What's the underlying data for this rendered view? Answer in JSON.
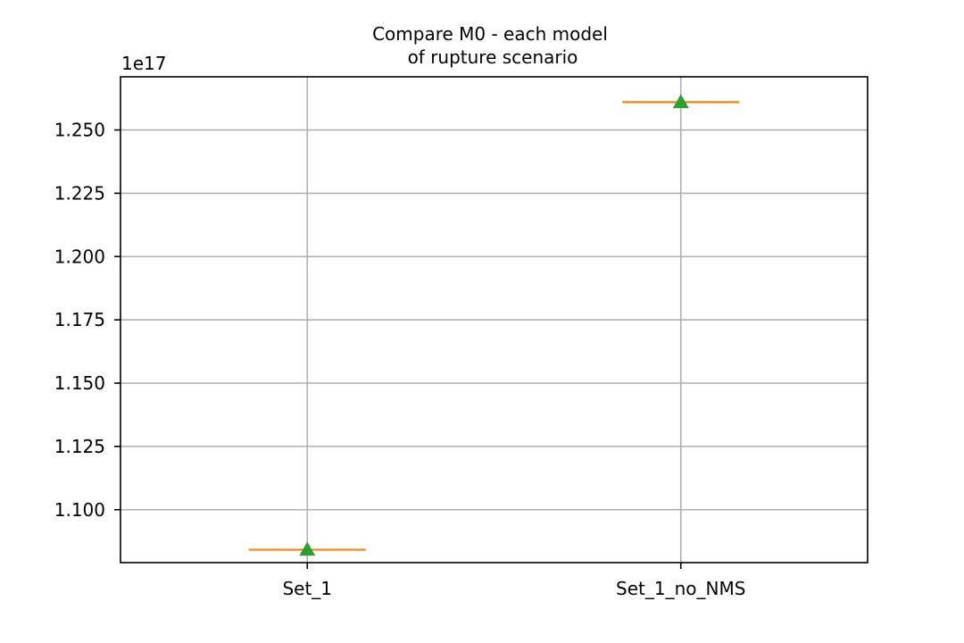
{
  "chart_data": {
    "type": "box",
    "title_lines": [
      "Compare M0 - each model",
      "of rupture scenario"
    ],
    "xlabel": "",
    "ylabel": "",
    "offset_text": "1e17",
    "categories": [
      "Set_1",
      "Set_1_no_NMS"
    ],
    "values": [
      1.0842,
      1.261
    ],
    "means": [
      1.0842,
      1.261
    ],
    "yticks": [
      1.1,
      1.125,
      1.15,
      1.175,
      1.2,
      1.225,
      1.25
    ],
    "ytick_labels": [
      "1.100",
      "1.125",
      "1.150",
      "1.175",
      "1.200",
      "1.225",
      "1.250"
    ],
    "ylim": [
      1.0791,
      1.271
    ],
    "grid": true,
    "colors": {
      "median": "#ff7f0e",
      "box": "#000000",
      "mean_marker": "#2ca02c",
      "grid": "#b0b0b0"
    }
  }
}
